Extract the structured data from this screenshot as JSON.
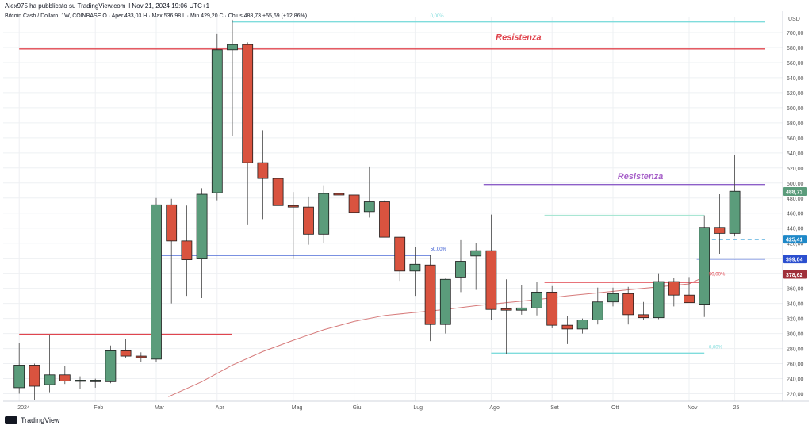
{
  "header": {
    "publish_line": "Alex975 ha pubblicato su TradingView.com il Nov 21, 2024 19:06 UTC+1",
    "symbol_line": "Bitcoin Cash / Dollaro, 1W, COINBASE  O · Aper.433,03  H · Max.536,98  L · Min.429,20  C · Chius.488,73  +55,69 (+12,86%)"
  },
  "footer": {
    "brand": "TradingView"
  },
  "colors": {
    "up": "#5b9c7b",
    "down": "#d9533f",
    "grid": "#eef0f3",
    "resistance_red": "#e0454e",
    "resistance_purple": "#8d5fc8",
    "support_blue": "#2b4fcf",
    "fib_cyan": "#7fdcdc",
    "ma_line": "#d67a7a"
  },
  "chart_data": {
    "type": "candlestick",
    "currency": "USD",
    "ylim": [
      210,
      720
    ],
    "y_ticks": [
      "220,00",
      "240,00",
      "260,00",
      "280,00",
      "300,00",
      "320,00",
      "340,00",
      "360,00",
      "380,00",
      "400,00",
      "420,00",
      "440,00",
      "460,00",
      "480,00",
      "500,00",
      "520,00",
      "540,00",
      "560,00",
      "580,00",
      "600,00",
      "620,00",
      "640,00",
      "660,00",
      "680,00",
      "700,00"
    ],
    "x_labels": [
      {
        "label": "2024",
        "week": 0
      },
      {
        "label": "Feb",
        "week": 5
      },
      {
        "label": "Mar",
        "week": 9
      },
      {
        "label": "Apr",
        "week": 13
      },
      {
        "label": "Mag",
        "week": 18
      },
      {
        "label": "Giu",
        "week": 22
      },
      {
        "label": "Lug",
        "week": 26
      },
      {
        "label": "Ago",
        "week": 31
      },
      {
        "label": "Set",
        "week": 35
      },
      {
        "label": "Ott",
        "week": 39
      },
      {
        "label": "Nov",
        "week": 44
      },
      {
        "label": "25",
        "week": 47
      }
    ],
    "candles": [
      {
        "o": 228,
        "h": 287,
        "l": 220,
        "c": 258
      },
      {
        "o": 258,
        "h": 260,
        "l": 212,
        "c": 230
      },
      {
        "o": 232,
        "h": 298,
        "l": 222,
        "c": 245
      },
      {
        "o": 245,
        "h": 257,
        "l": 233,
        "c": 237
      },
      {
        "o": 237,
        "h": 243,
        "l": 226,
        "c": 238
      },
      {
        "o": 236,
        "h": 240,
        "l": 228,
        "c": 238
      },
      {
        "o": 236,
        "h": 284,
        "l": 234,
        "c": 277
      },
      {
        "o": 277,
        "h": 293,
        "l": 268,
        "c": 270
      },
      {
        "o": 270,
        "h": 275,
        "l": 262,
        "c": 268
      },
      {
        "o": 266,
        "h": 480,
        "l": 262,
        "c": 471
      },
      {
        "o": 471,
        "h": 479,
        "l": 340,
        "c": 423
      },
      {
        "o": 423,
        "h": 470,
        "l": 350,
        "c": 398
      },
      {
        "o": 400,
        "h": 493,
        "l": 347,
        "c": 485
      },
      {
        "o": 487,
        "h": 698,
        "l": 477,
        "c": 677
      },
      {
        "o": 677,
        "h": 717,
        "l": 563,
        "c": 684
      },
      {
        "o": 684,
        "h": 687,
        "l": 444,
        "c": 527
      },
      {
        "o": 527,
        "h": 570,
        "l": 452,
        "c": 506
      },
      {
        "o": 506,
        "h": 527,
        "l": 465,
        "c": 470
      },
      {
        "o": 470,
        "h": 488,
        "l": 400,
        "c": 468
      },
      {
        "o": 468,
        "h": 482,
        "l": 418,
        "c": 432
      },
      {
        "o": 432,
        "h": 497,
        "l": 420,
        "c": 486
      },
      {
        "o": 486,
        "h": 498,
        "l": 462,
        "c": 484
      },
      {
        "o": 484,
        "h": 530,
        "l": 446,
        "c": 461
      },
      {
        "o": 462,
        "h": 522,
        "l": 454,
        "c": 475
      },
      {
        "o": 475,
        "h": 477,
        "l": 428,
        "c": 428
      },
      {
        "o": 428,
        "h": 423,
        "l": 370,
        "c": 383
      },
      {
        "o": 383,
        "h": 415,
        "l": 350,
        "c": 392
      },
      {
        "o": 391,
        "h": 404,
        "l": 290,
        "c": 312
      },
      {
        "o": 312,
        "h": 373,
        "l": 300,
        "c": 372
      },
      {
        "o": 375,
        "h": 424,
        "l": 355,
        "c": 396
      },
      {
        "o": 403,
        "h": 420,
        "l": 358,
        "c": 410
      },
      {
        "o": 410,
        "h": 458,
        "l": 318,
        "c": 332
      },
      {
        "o": 333,
        "h": 372,
        "l": 273,
        "c": 331
      },
      {
        "o": 331,
        "h": 364,
        "l": 325,
        "c": 334
      },
      {
        "o": 334,
        "h": 368,
        "l": 324,
        "c": 355
      },
      {
        "o": 355,
        "h": 363,
        "l": 307,
        "c": 311
      },
      {
        "o": 311,
        "h": 323,
        "l": 286,
        "c": 306
      },
      {
        "o": 306,
        "h": 320,
        "l": 300,
        "c": 318
      },
      {
        "o": 318,
        "h": 361,
        "l": 312,
        "c": 342
      },
      {
        "o": 342,
        "h": 361,
        "l": 336,
        "c": 353
      },
      {
        "o": 353,
        "h": 362,
        "l": 312,
        "c": 325
      },
      {
        "o": 325,
        "h": 342,
        "l": 318,
        "c": 321
      },
      {
        "o": 321,
        "h": 380,
        "l": 319,
        "c": 369
      },
      {
        "o": 369,
        "h": 374,
        "l": 336,
        "c": 351
      },
      {
        "o": 351,
        "h": 375,
        "l": 342,
        "c": 341
      },
      {
        "o": 339,
        "h": 457,
        "l": 322,
        "c": 441
      },
      {
        "o": 441,
        "h": 485,
        "l": 406,
        "c": 433
      },
      {
        "o": 433,
        "h": 537,
        "l": 429,
        "c": 489
      }
    ],
    "levels": [
      {
        "name": "resistance-high",
        "price": 678,
        "from": 0,
        "to": 49,
        "color": "#e0454e",
        "label": "Resistenza"
      },
      {
        "name": "resistance-mid",
        "price": 498,
        "from": 30.5,
        "to": 49,
        "color": "#8d5fc8",
        "label": "Resistenza"
      },
      {
        "name": "support-2024",
        "price": 299,
        "from": 0,
        "to": 14,
        "color": "#e0454e"
      },
      {
        "name": "fib-50-left",
        "price": 404,
        "from": 9.2,
        "to": 27,
        "color": "#2b4fcf"
      },
      {
        "name": "support-399",
        "price": 399,
        "from": 44.5,
        "to": 49,
        "color": "#2b4fcf"
      },
      {
        "name": "fib-0-top",
        "price": 714,
        "from": 14,
        "to": 49,
        "color": "#7fdcdc"
      },
      {
        "name": "fib-0-bottom",
        "price": 274,
        "from": 31,
        "to": 45,
        "color": "#7fdcdc"
      },
      {
        "name": "fib-mid-cyan",
        "price": 457,
        "from": 34.5,
        "to": 45,
        "color": "#a9e6d3"
      },
      {
        "name": "fib-50-right",
        "price": 368,
        "from": 34.5,
        "to": 45,
        "color": "#e0454e"
      },
      {
        "name": "dashed-425",
        "price": 425,
        "from": 45.5,
        "to": 49,
        "color": "#3aa0d8",
        "dashed": true
      }
    ],
    "annotations": [
      {
        "text": "Resistenza",
        "price": 690,
        "week": 31.3,
        "color": "#e0454e"
      },
      {
        "text": "Resistenza",
        "price": 505,
        "week": 39.3,
        "color": "#a65fc8"
      },
      {
        "text": "50,00%",
        "price": 410,
        "week": 27,
        "color": "#2b4fcf"
      },
      {
        "text": "50,00%",
        "price": 377,
        "week": 45.3,
        "color": "#e0454e"
      },
      {
        "text": "0,00%",
        "price": 720,
        "week": 27,
        "color": "#7fdcdc"
      },
      {
        "text": "0,00%",
        "price": 280,
        "week": 45.3,
        "color": "#7fdcdc"
      }
    ],
    "price_tags": [
      {
        "text": "488,73",
        "price": 488.73,
        "bg": "#5b9c7b"
      },
      {
        "text": "425,41",
        "price": 425.41,
        "bg": "#1e88c8"
      },
      {
        "text": "399,04",
        "price": 399.04,
        "bg": "#2b4fcf"
      },
      {
        "text": "378,62",
        "price": 378.62,
        "bg": "#a0303a"
      }
    ],
    "moving_average": [
      {
        "week": 9.8,
        "price": 216
      },
      {
        "week": 12,
        "price": 236
      },
      {
        "week": 14,
        "price": 258
      },
      {
        "week": 16,
        "price": 276
      },
      {
        "week": 18,
        "price": 291
      },
      {
        "week": 20,
        "price": 305
      },
      {
        "week": 22,
        "price": 316
      },
      {
        "week": 24,
        "price": 324
      },
      {
        "week": 26,
        "price": 328
      },
      {
        "week": 28,
        "price": 332
      },
      {
        "week": 30,
        "price": 337
      },
      {
        "week": 32,
        "price": 341
      },
      {
        "week": 34,
        "price": 345
      },
      {
        "week": 36,
        "price": 350
      },
      {
        "week": 38,
        "price": 354
      },
      {
        "week": 40,
        "price": 358
      },
      {
        "week": 42,
        "price": 362
      },
      {
        "week": 44,
        "price": 366
      },
      {
        "week": 45.5,
        "price": 380
      }
    ]
  }
}
